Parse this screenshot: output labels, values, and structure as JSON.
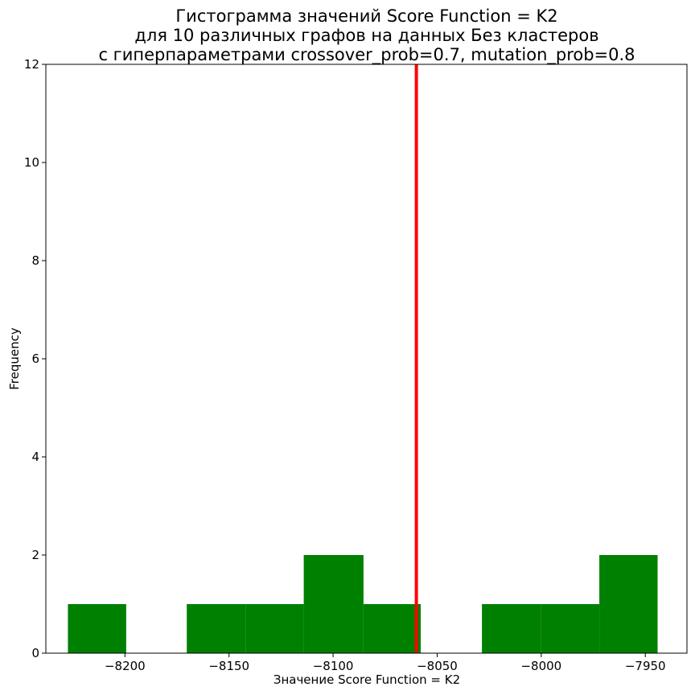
{
  "chart_data": {
    "type": "bar",
    "title_lines": [
      "Гистограмма значений Score Function = K2",
      "для 10 различных графов на данных Без кластеров",
      "с гиперпараметрами crossover_prob=0.7, mutation_prob=0.8"
    ],
    "xlabel": "Значение Score Function = K2",
    "ylabel": "Frequency",
    "xlim": [
      -8238,
      -7930
    ],
    "ylim": [
      0,
      12
    ],
    "x_ticks": [
      -8200,
      -8150,
      -8100,
      -8050,
      -8000,
      -7950
    ],
    "x_tick_labels": [
      "−8200",
      "−8150",
      "−8100",
      "−8050",
      "−8000",
      "−7950"
    ],
    "y_ticks": [
      0,
      2,
      4,
      6,
      8,
      10,
      12
    ],
    "y_tick_labels": [
      "0",
      "2",
      "4",
      "6",
      "8",
      "10",
      "12"
    ],
    "bins": [
      {
        "x0": -8227.4,
        "x1": -8199.4,
        "count": 1
      },
      {
        "x0": -8199.4,
        "x1": -8170.3,
        "count": 0
      },
      {
        "x0": -8170.3,
        "x1": -8142.1,
        "count": 1
      },
      {
        "x0": -8142.1,
        "x1": -8114.1,
        "count": 1
      },
      {
        "x0": -8114.1,
        "x1": -8085.4,
        "count": 2
      },
      {
        "x0": -8085.4,
        "x1": -8057.9,
        "count": 1
      },
      {
        "x0": -8057.9,
        "x1": -8028.5,
        "count": 0
      },
      {
        "x0": -8028.5,
        "x1": -8000.0,
        "count": 1
      },
      {
        "x0": -8000.0,
        "x1": -7972.1,
        "count": 1
      },
      {
        "x0": -7972.1,
        "x1": -7944.1,
        "count": 2
      }
    ],
    "vline_x": -8060,
    "bar_color": "#008000",
    "vline_color": "#ff0000",
    "grid": false,
    "legend": "none"
  }
}
